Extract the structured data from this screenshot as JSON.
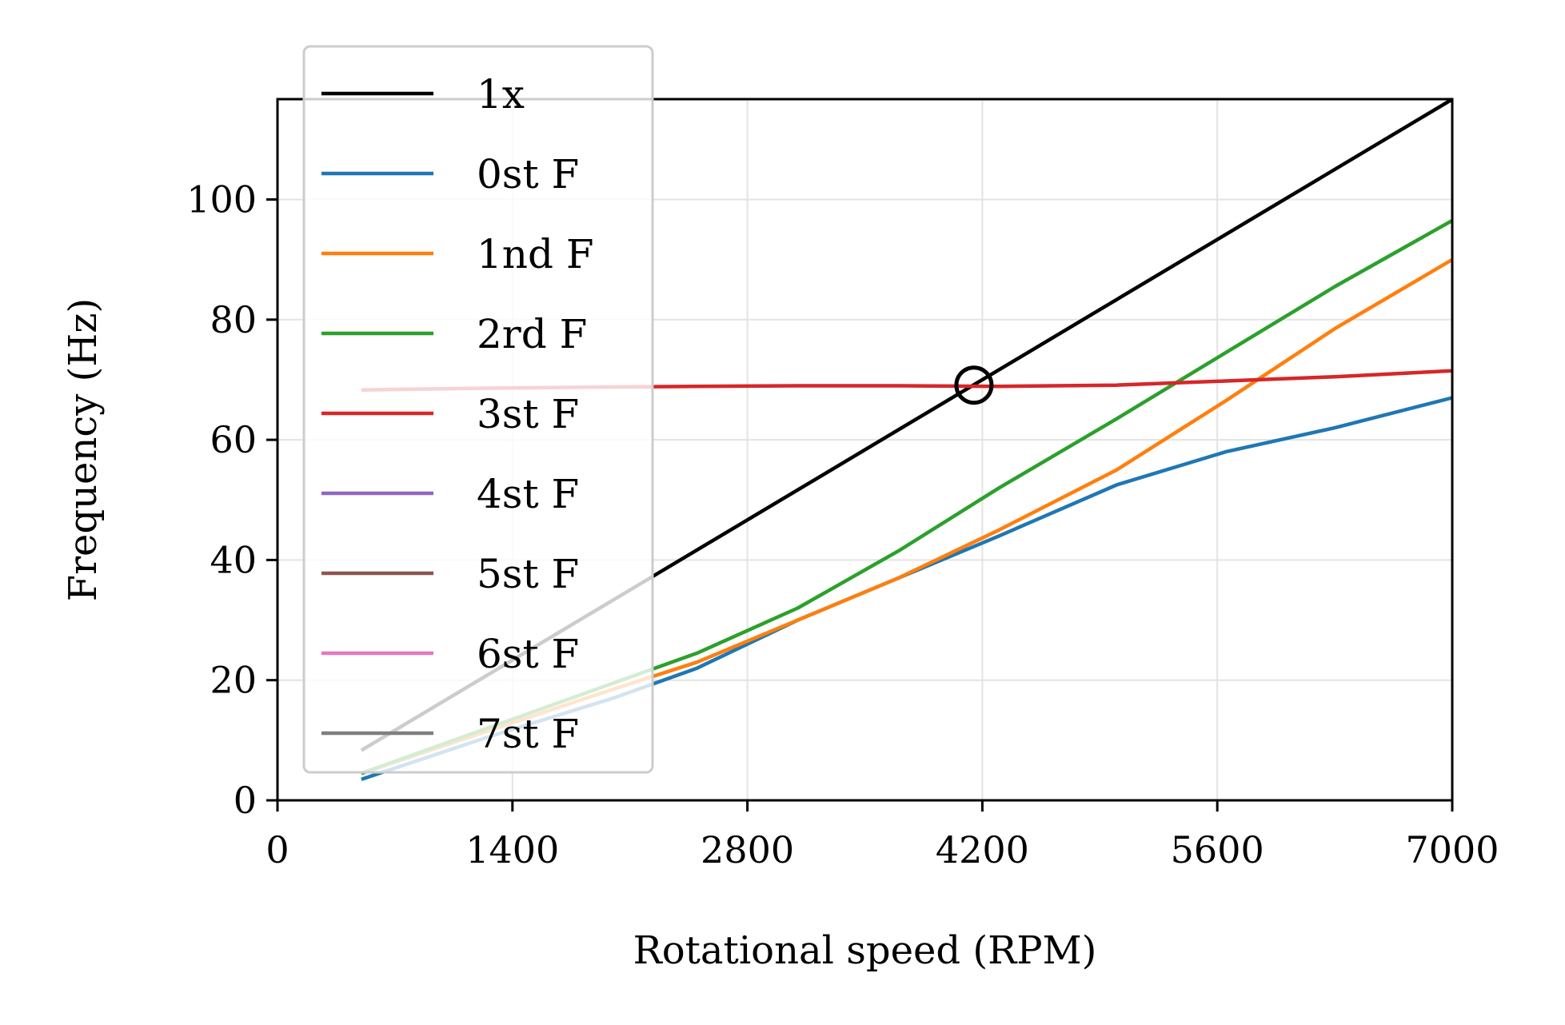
{
  "chart_data": {
    "type": "line",
    "xlabel": "Rotational speed (RPM)",
    "ylabel": "Frequency (Hz)",
    "xlim": [
      0,
      7000
    ],
    "ylim": [
      0,
      116.7
    ],
    "xticks": [
      "0",
      "1400",
      "2800",
      "4200",
      "5600",
      "7000"
    ],
    "yticks": [
      "0",
      "20",
      "40",
      "60",
      "80",
      "100"
    ],
    "grid": true,
    "legend_position": "upper-left",
    "series": [
      {
        "name": "1x",
        "color": "#000000",
        "x": [
          500,
          7000
        ],
        "y": [
          8.33,
          116.67
        ]
      },
      {
        "name": "0st F",
        "color": "#1f77b4",
        "x": [
          500,
          1250,
          2000,
          2500,
          3100,
          3700,
          4300,
          5000,
          5650,
          6300,
          7000
        ],
        "y": [
          3.5,
          10.5,
          17.0,
          22.0,
          30.0,
          37.0,
          44.0,
          52.5,
          58.0,
          62.0,
          67.0
        ]
      },
      {
        "name": "1nd F",
        "color": "#ff7f0e",
        "x": [
          500,
          1250,
          2000,
          2500,
          3100,
          3700,
          4300,
          5000,
          5650,
          6300,
          7000
        ],
        "y": [
          4.5,
          11.5,
          18.5,
          23.0,
          30.0,
          37.0,
          45.0,
          55.0,
          66.5,
          78.5,
          90.0
        ]
      },
      {
        "name": "2rd F",
        "color": "#2ca02c",
        "x": [
          500,
          1250,
          2000,
          2500,
          3100,
          3700,
          4300,
          5000,
          5650,
          6300,
          7000
        ],
        "y": [
          4.5,
          12.0,
          19.5,
          24.5,
          32.0,
          41.5,
          52.0,
          63.5,
          74.5,
          85.5,
          96.5
        ]
      },
      {
        "name": "3st F",
        "color": "#d62728",
        "x": [
          500,
          1250,
          2000,
          2500,
          3100,
          3700,
          4300,
          5000,
          5650,
          6300,
          7000
        ],
        "y": [
          68.3,
          68.6,
          68.8,
          68.9,
          69.0,
          69.0,
          68.9,
          69.1,
          69.8,
          70.5,
          71.5
        ]
      },
      {
        "name": "4st F",
        "color": "#9467bd",
        "x": [],
        "y": []
      },
      {
        "name": "5st F",
        "color": "#8c564b",
        "x": [],
        "y": []
      },
      {
        "name": "6st F",
        "color": "#e377c2",
        "x": [],
        "y": []
      },
      {
        "name": "7st F",
        "color": "#7f7f7f",
        "x": [],
        "y": []
      }
    ],
    "annotations": [
      {
        "type": "circle-marker",
        "x": 4150,
        "y": 69.1,
        "color": "#000000"
      }
    ]
  }
}
